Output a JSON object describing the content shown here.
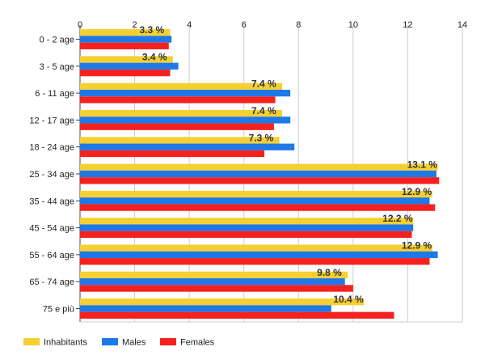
{
  "chart_data": {
    "type": "bar",
    "orientation": "horizontal",
    "categories": [
      "0 - 2 age",
      "3 - 5 age",
      "6 - 11 age",
      "12 - 17 age",
      "18 - 24 age",
      "25 - 34 age",
      "35 - 44 age",
      "45 - 54 age",
      "55 - 64 age",
      "65 - 74 age",
      "75 e più"
    ],
    "series": [
      {
        "name": "Inhabitants",
        "color": "#f5d033",
        "values": [
          3.3,
          3.4,
          7.4,
          7.4,
          7.3,
          13.1,
          12.9,
          12.2,
          12.9,
          9.8,
          10.4
        ]
      },
      {
        "name": "Males",
        "color": "#1e78e8",
        "values": [
          3.35,
          3.6,
          7.7,
          7.7,
          7.85,
          13.05,
          12.8,
          12.2,
          13.1,
          9.7,
          9.2
        ]
      },
      {
        "name": "Females",
        "color": "#f5211f",
        "values": [
          3.25,
          3.3,
          7.15,
          7.1,
          6.75,
          13.15,
          13.0,
          12.15,
          12.8,
          10.0,
          11.5
        ]
      }
    ],
    "data_labels": [
      "3.3 %",
      "3.4 %",
      "7.4 %",
      "7.4 %",
      "7.3 %",
      "13.1 %",
      "12.9 %",
      "12.2 %",
      "12.9 %",
      "9.8 %",
      "10.4 %"
    ],
    "xlim": [
      0,
      14
    ],
    "xticks": [
      "0",
      "2",
      "4",
      "6",
      "8",
      "10",
      "12",
      "14"
    ],
    "grid": true,
    "legend": "bottom-left"
  }
}
